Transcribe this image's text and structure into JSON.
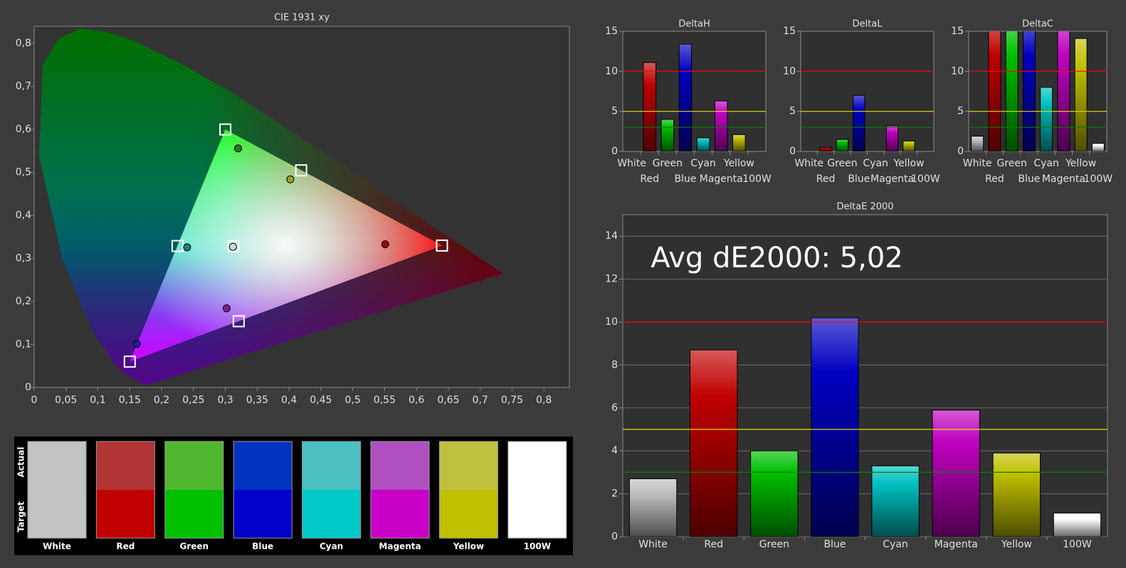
{
  "chart_data": [
    {
      "type": "scatter",
      "title": "CIE 1931 xy",
      "xlim": [
        0,
        0.84
      ],
      "ylim": [
        0,
        0.84
      ],
      "xticks": [
        0,
        {
          "value": 0.05,
          "label": "0,05"
        },
        {
          "value": 0.1,
          "label": "0,1"
        },
        {
          "value": 0.15,
          "label": "0,15"
        },
        {
          "value": 0.2,
          "label": "0,2"
        },
        {
          "value": 0.25,
          "label": "0,25"
        },
        {
          "value": 0.3,
          "label": "0,3"
        },
        {
          "value": 0.35,
          "label": "0,35"
        },
        {
          "value": 0.4,
          "label": "0,4"
        },
        {
          "value": 0.45,
          "label": "0,45"
        },
        {
          "value": 0.5,
          "label": "0,5"
        },
        {
          "value": 0.55,
          "label": "0,55"
        },
        {
          "value": 0.6,
          "label": "0,6"
        },
        {
          "value": 0.65,
          "label": "0,65"
        },
        {
          "value": 0.7,
          "label": "0,7"
        },
        {
          "value": 0.75,
          "label": "0,75"
        },
        {
          "value": 0.8,
          "label": "0,8"
        }
      ],
      "yticks": [
        0,
        {
          "value": 0.1,
          "label": "0,1"
        },
        {
          "value": 0.2,
          "label": "0,2"
        },
        {
          "value": 0.3,
          "label": "0,3"
        },
        {
          "value": 0.4,
          "label": "0,4"
        },
        {
          "value": 0.5,
          "label": "0,5"
        },
        {
          "value": 0.6,
          "label": "0,6"
        },
        {
          "value": 0.7,
          "label": "0,7"
        },
        {
          "value": 0.8,
          "label": "0,8"
        }
      ],
      "series": [
        {
          "marker": "square",
          "color": "#ffffff",
          "x": [
            0.3127,
            0.64,
            0.3,
            0.15,
            0.225,
            0.321,
            0.419
          ],
          "y": [
            0.329,
            0.33,
            0.6,
            0.06,
            0.329,
            0.154,
            0.505
          ]
        },
        {
          "marker": "circle",
          "colors": [
            "#d8d8d8",
            "#a00000",
            "#208020",
            "#2020a0",
            "#208080",
            "#802080",
            "#a0a020"
          ],
          "x": [
            0.312,
            0.551,
            0.32,
            0.161,
            0.24,
            0.302,
            0.402
          ],
          "y": [
            0.327,
            0.333,
            0.556,
            0.101,
            0.326,
            0.184,
            0.484
          ]
        }
      ]
    },
    {
      "type": "bar",
      "title": "DeltaH",
      "categories": [
        "White",
        "Red",
        "Green",
        "Blue",
        "Cyan",
        "Magenta",
        "Yellow",
        "100W"
      ],
      "values": [
        0,
        11.1,
        4.0,
        13.4,
        1.7,
        6.3,
        2.1,
        0
      ],
      "colors": [
        "#c0c0c0",
        "#c00000",
        "#00c000",
        "#0000c0",
        "#00c0c0",
        "#c000c0",
        "#c0c000",
        "#ffffff"
      ],
      "ylim": [
        0,
        15
      ],
      "yticks": [
        0,
        5,
        10,
        15
      ],
      "grid": false,
      "reference_lines": [
        {
          "value": 10,
          "color": "#ff0000"
        },
        {
          "value": 5,
          "color": "#e0e000"
        },
        {
          "value": 3,
          "color": "#008000"
        }
      ]
    },
    {
      "type": "bar",
      "title": "DeltaL",
      "categories": [
        "White",
        "Red",
        "Green",
        "Blue",
        "Cyan",
        "Magenta",
        "Yellow",
        "100W"
      ],
      "values": [
        0,
        0.5,
        1.5,
        7.0,
        0,
        3.2,
        1.3,
        0
      ],
      "colors": [
        "#c0c0c0",
        "#c00000",
        "#00c000",
        "#0000c0",
        "#00c0c0",
        "#c000c0",
        "#c0c000",
        "#ffffff"
      ],
      "ylim": [
        0,
        15
      ],
      "yticks": [
        0,
        5,
        10,
        15
      ],
      "grid": false,
      "reference_lines": [
        {
          "value": 10,
          "color": "#ff0000"
        },
        {
          "value": 5,
          "color": "#e0e000"
        },
        {
          "value": 3,
          "color": "#008000"
        }
      ]
    },
    {
      "type": "bar",
      "title": "DeltaC",
      "categories": [
        "White",
        "Red",
        "Green",
        "Blue",
        "Cyan",
        "Magenta",
        "Yellow",
        "100W"
      ],
      "values": [
        1.9,
        16,
        16,
        16,
        8.0,
        16,
        14.1,
        1.0
      ],
      "colors": [
        "#c0c0c0",
        "#c00000",
        "#00c000",
        "#0000c0",
        "#00c0c0",
        "#c000c0",
        "#c0c000",
        "#ffffff"
      ],
      "ylim": [
        0,
        15
      ],
      "yticks": [
        0,
        5,
        10,
        15
      ],
      "grid": false,
      "reference_lines": [
        {
          "value": 10,
          "color": "#ff0000"
        },
        {
          "value": 5,
          "color": "#e0e000"
        },
        {
          "value": 3,
          "color": "#008000"
        }
      ]
    },
    {
      "type": "bar",
      "title": "DeltaE 2000",
      "annotation": "Avg dE2000: 5,02",
      "categories": [
        "White",
        "Red",
        "Green",
        "Blue",
        "Cyan",
        "Magenta",
        "Yellow",
        "100W"
      ],
      "values": [
        2.7,
        8.7,
        4.0,
        10.2,
        3.3,
        5.9,
        3.9,
        1.1
      ],
      "colors": [
        "#c0c0c0",
        "#c00000",
        "#00c000",
        "#0000c0",
        "#00c0c0",
        "#c000c0",
        "#c0c000",
        "#ffffff"
      ],
      "ylim": [
        0,
        15
      ],
      "yticks": [
        0,
        2,
        4,
        6,
        8,
        10,
        12,
        14
      ],
      "grid": true,
      "reference_lines": [
        {
          "value": 10,
          "color": "#ff0000"
        },
        {
          "value": 5,
          "color": "#e0e000"
        },
        {
          "value": 3,
          "color": "#008000"
        }
      ]
    }
  ],
  "swatches": {
    "row_labels": [
      "Actual",
      "Target"
    ],
    "items": [
      {
        "name": "White",
        "actual": "#c2c4c4",
        "target": "#c2c4c4"
      },
      {
        "name": "Red",
        "actual": "#b23535",
        "target": "#c00000"
      },
      {
        "name": "Green",
        "actual": "#50b830",
        "target": "#00c000"
      },
      {
        "name": "Blue",
        "actual": "#0033c0",
        "target": "#0000c8"
      },
      {
        "name": "Cyan",
        "actual": "#4ac0c0",
        "target": "#00c8c8"
      },
      {
        "name": "Magenta",
        "actual": "#b050c0",
        "target": "#c800c8"
      },
      {
        "name": "Yellow",
        "actual": "#c0c040",
        "target": "#c0c000"
      },
      {
        "name": "100W",
        "actual": "#ffffff",
        "target": "#ffffff"
      }
    ]
  }
}
